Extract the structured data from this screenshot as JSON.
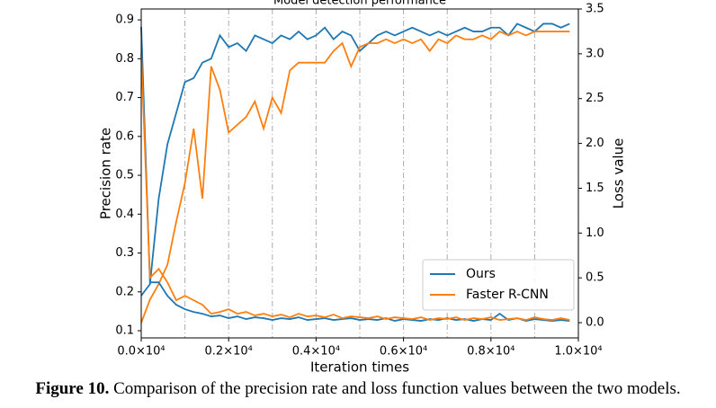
{
  "chart_data": {
    "type": "line",
    "title": "Model detection performance",
    "xlabel": "Iteration times",
    "ylabel": "Precision rate",
    "y2label": "Loss value",
    "x": [
      0,
      200,
      400,
      600,
      800,
      1000,
      1200,
      1400,
      1600,
      1800,
      2000,
      2200,
      2400,
      2600,
      2800,
      3000,
      3200,
      3400,
      3600,
      3800,
      4000,
      4200,
      4400,
      4600,
      4800,
      5000,
      5200,
      5400,
      5600,
      5800,
      6000,
      6200,
      6400,
      6600,
      6800,
      7000,
      7200,
      7400,
      7600,
      7800,
      8000,
      8200,
      8400,
      8600,
      8800,
      9000,
      9200,
      9400,
      9600,
      9800
    ],
    "series": [
      {
        "name": "Ours",
        "color": "#1f77b4",
        "axis": "y",
        "values": [
          0.19,
          0.22,
          0.44,
          0.58,
          0.66,
          0.74,
          0.75,
          0.79,
          0.8,
          0.86,
          0.83,
          0.84,
          0.82,
          0.86,
          0.85,
          0.84,
          0.86,
          0.85,
          0.87,
          0.85,
          0.86,
          0.88,
          0.85,
          0.87,
          0.86,
          0.82,
          0.84,
          0.86,
          0.87,
          0.86,
          0.87,
          0.88,
          0.87,
          0.86,
          0.87,
          0.86,
          0.87,
          0.88,
          0.87,
          0.87,
          0.88,
          0.88,
          0.86,
          0.89,
          0.88,
          0.87,
          0.89,
          0.89,
          0.88,
          0.89
        ]
      },
      {
        "name": "Faster R-CNN",
        "color": "#ff7f0e",
        "axis": "y",
        "values": [
          0.12,
          0.18,
          0.22,
          0.27,
          0.38,
          0.48,
          0.62,
          0.44,
          0.78,
          0.72,
          0.61,
          0.63,
          0.65,
          0.69,
          0.62,
          0.7,
          0.66,
          0.77,
          0.79,
          0.79,
          0.79,
          0.79,
          0.82,
          0.84,
          0.78,
          0.83,
          0.84,
          0.84,
          0.85,
          0.84,
          0.85,
          0.84,
          0.85,
          0.82,
          0.85,
          0.84,
          0.86,
          0.85,
          0.85,
          0.86,
          0.85,
          0.87,
          0.86,
          0.87,
          0.86,
          0.87,
          0.87,
          0.87,
          0.87,
          0.87
        ]
      },
      {
        "color": "#1f77b4",
        "axis": "y2",
        "values": [
          3.3,
          0.45,
          0.45,
          0.3,
          0.2,
          0.15,
          0.12,
          0.1,
          0.07,
          0.08,
          0.05,
          0.07,
          0.04,
          0.06,
          0.05,
          0.03,
          0.05,
          0.04,
          0.06,
          0.03,
          0.04,
          0.05,
          0.03,
          0.04,
          0.05,
          0.03,
          0.04,
          0.03,
          0.05,
          0.02,
          0.04,
          0.03,
          0.02,
          0.04,
          0.03,
          0.05,
          0.03,
          0.04,
          0.02,
          0.04,
          0.03,
          0.1,
          0.03,
          0.05,
          0.02,
          0.04,
          0.03,
          0.02,
          0.03,
          0.02
        ]
      },
      {
        "color": "#ff7f0e",
        "axis": "y2",
        "values": [
          3.0,
          0.5,
          0.6,
          0.45,
          0.25,
          0.3,
          0.25,
          0.2,
          0.1,
          0.12,
          0.15,
          0.1,
          0.12,
          0.08,
          0.1,
          0.07,
          0.09,
          0.06,
          0.1,
          0.07,
          0.08,
          0.06,
          0.09,
          0.05,
          0.07,
          0.06,
          0.05,
          0.07,
          0.04,
          0.06,
          0.05,
          0.04,
          0.06,
          0.03,
          0.05,
          0.04,
          0.06,
          0.03,
          0.05,
          0.04,
          0.06,
          0.03,
          0.04,
          0.05,
          0.03,
          0.06,
          0.04,
          0.03,
          0.05,
          0.03
        ]
      }
    ],
    "xlim": [
      0,
      10000
    ],
    "xticks": [
      {
        "value": 0,
        "label": "0.0×10⁴"
      },
      {
        "value": 2000,
        "label": "0.2×10⁴"
      },
      {
        "value": 4000,
        "label": "0.4×10⁴"
      },
      {
        "value": 6000,
        "label": "0.6×10⁴"
      },
      {
        "value": 8000,
        "label": "0.8×10⁴"
      },
      {
        "value": 10000,
        "label": "1.0×10⁴"
      }
    ],
    "xgrid": [
      1000,
      2000,
      3000,
      4000,
      5000,
      6000,
      7000,
      8000,
      9000
    ],
    "ylim": [
      0.0815,
      0.928
    ],
    "yticks": [
      0.1,
      0.2,
      0.3,
      0.4,
      0.5,
      0.6,
      0.7,
      0.8,
      0.9
    ],
    "y2lim": [
      -0.17,
      3.5
    ],
    "y2ticks": [
      {
        "value": 0,
        "label": "0.0"
      },
      0.5,
      {
        "value": 1,
        "label": "1.0"
      },
      1.5,
      {
        "value": 2,
        "label": "2.0"
      },
      2.5,
      {
        "value": 3,
        "label": "3.0"
      },
      3.5
    ],
    "legend": "lower right"
  },
  "caption": {
    "label": "Figure 10.",
    "text": " Comparison of the precision rate and loss function values between the two models."
  }
}
